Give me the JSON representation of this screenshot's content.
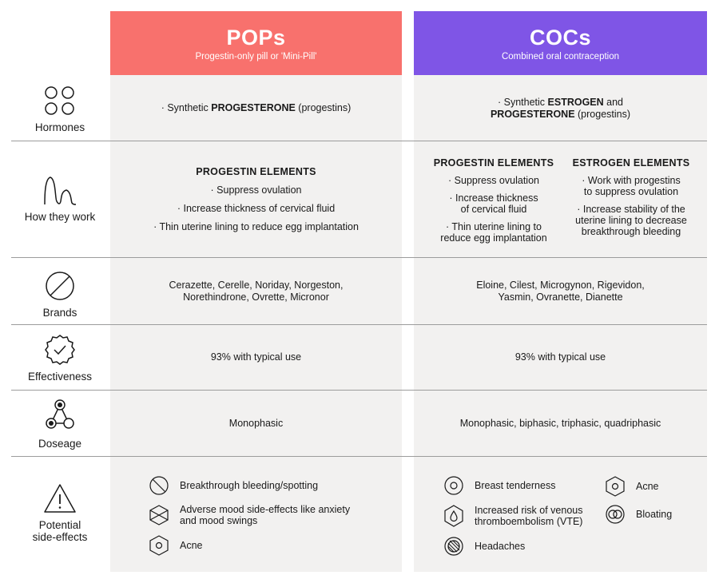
{
  "columns": {
    "pop": {
      "title": "POPs",
      "subtitle": "Progestin-only pill or 'Mini-Pill'",
      "color": "#f8716d"
    },
    "coc": {
      "title": "COCs",
      "subtitle": "Combined oral contraception",
      "color": "#7f55e6"
    }
  },
  "rows": {
    "hormones": {
      "label": "Hormones",
      "pop": {
        "prefix": "· Synthetic ",
        "strong": "PROGESTERONE",
        "suffix": " (progestins)"
      },
      "coc": {
        "prefix": "· Synthetic ",
        "strong1": "ESTROGEN",
        "mid": " and",
        "strong2": "PROGESTERONE",
        "suffix": " (progestins)"
      }
    },
    "how": {
      "label": "How they work",
      "pop": {
        "heading": "PROGESTIN ELEMENTS",
        "items": [
          "· Suppress ovulation",
          "· Increase thickness of cervical fluid",
          "· Thin uterine lining to reduce egg implantation"
        ]
      },
      "coc_progestin": {
        "heading": "PROGESTIN ELEMENTS",
        "items": [
          "· Suppress ovulation",
          "· Increase thickness",
          "of cervical fluid",
          "· Thin uterine lining to",
          "reduce egg implantation"
        ]
      },
      "coc_estrogen": {
        "heading": "ESTROGEN ELEMENTS",
        "items": [
          "· Work with progestins",
          "to suppress ovulation",
          "· Increase stability of the",
          "uterine lining to decrease",
          "breakthrough bleeding"
        ]
      }
    },
    "brands": {
      "label": "Brands",
      "pop": [
        "Cerazette, Cerelle, Noriday, Norgeston,",
        "Norethindrone, Ovrette, Micronor"
      ],
      "coc": [
        "Eloine, Cilest, Microgynon, Rigevidon,",
        "Yasmin, Ovranette, Dianette"
      ]
    },
    "effectiveness": {
      "label": "Effectiveness",
      "pop": "93% with typical use",
      "coc": "93% with typical use"
    },
    "dosage": {
      "label": "Doseage",
      "pop": "Monophasic",
      "coc": "Monophasic, biphasic, triphasic, quadriphasic"
    },
    "side_effects": {
      "label_line1": "Potential",
      "label_line2": "side-effects",
      "pop": [
        {
          "icon": "no-circle-icon",
          "lines": [
            "Breakthrough bleeding/spotting"
          ]
        },
        {
          "icon": "crossed-hexagon-icon",
          "lines": [
            "Adverse mood side-effects like anxiety",
            "and mood swings"
          ]
        },
        {
          "icon": "hexagon-icon",
          "lines": [
            "Acne"
          ]
        }
      ],
      "coc": [
        {
          "icon": "target-circle-icon",
          "lines": [
            "Breast tenderness"
          ]
        },
        {
          "icon": "drop-hexagon-icon",
          "lines": [
            "Increased risk of venous",
            "thromboembolism (VTE)"
          ]
        },
        {
          "icon": "hatched-circle-icon",
          "lines": [
            "Headaches"
          ]
        },
        {
          "icon": "hexagon-icon",
          "lines": [
            "Acne"
          ]
        },
        {
          "icon": "double-circle-icon",
          "lines": [
            "Bloating"
          ]
        }
      ]
    }
  }
}
